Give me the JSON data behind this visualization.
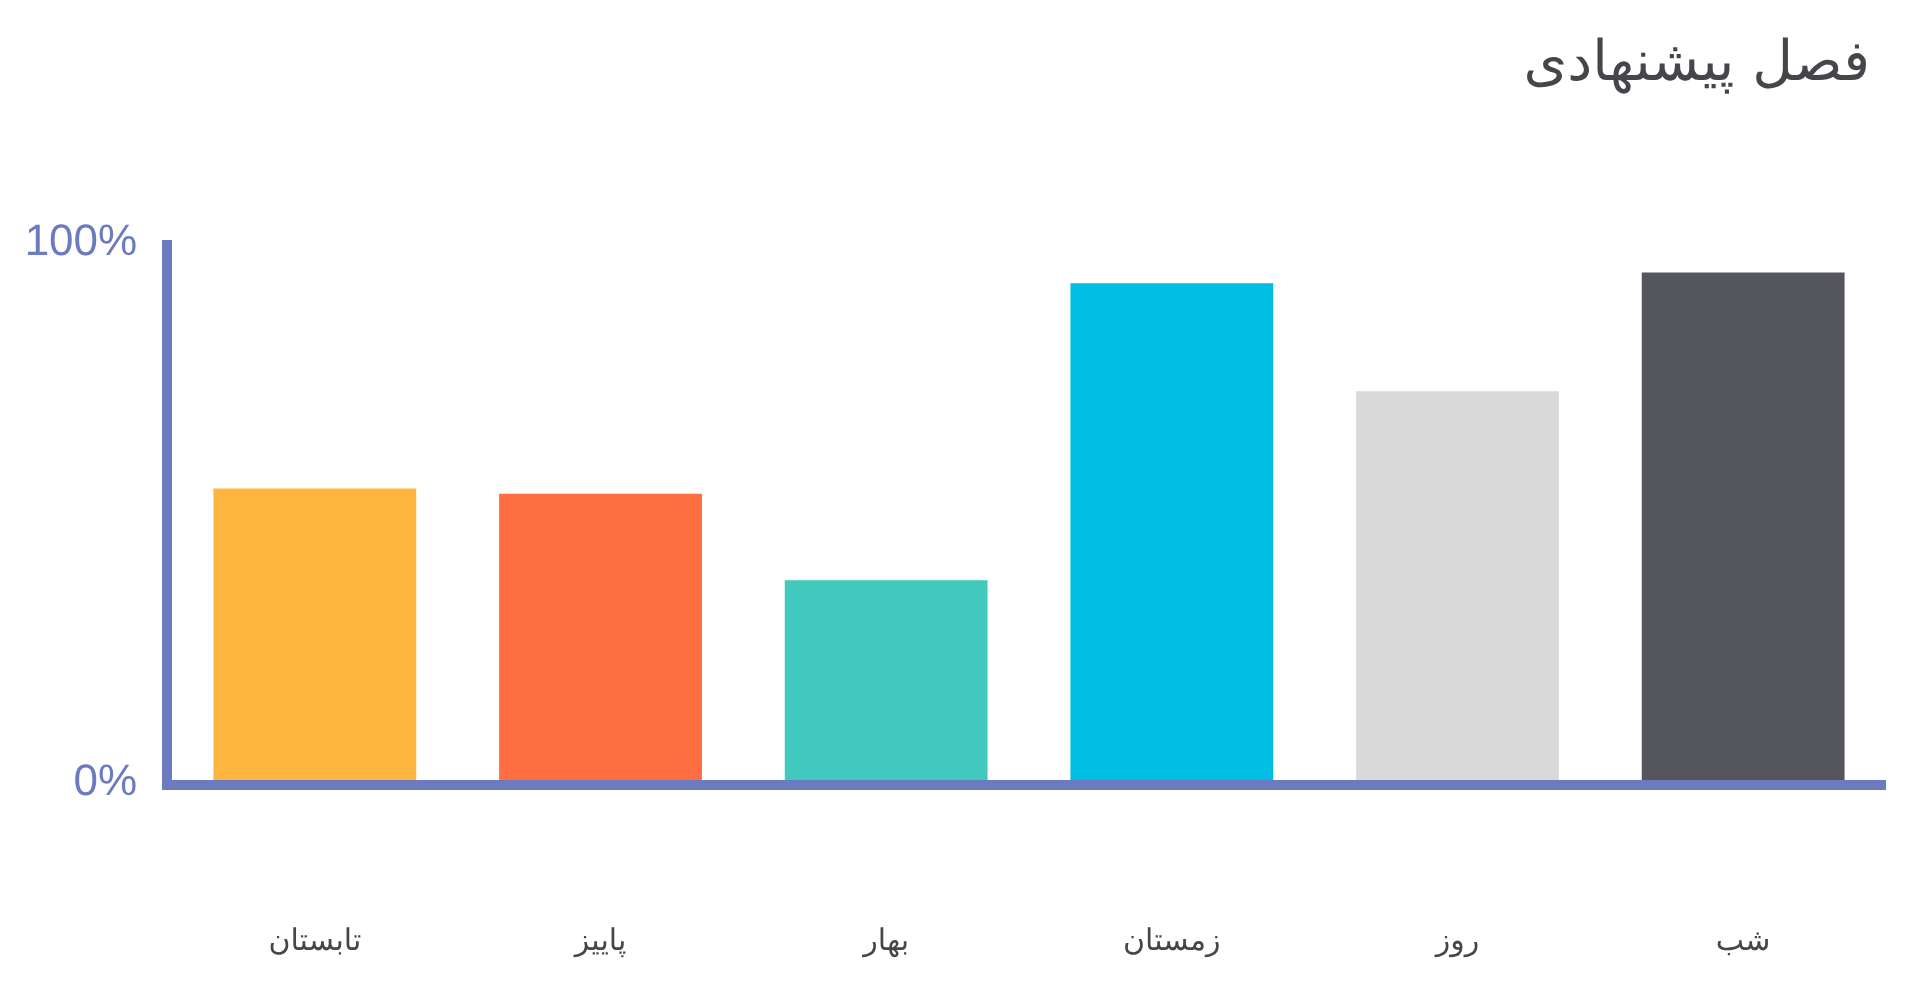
{
  "chart_data": {
    "type": "bar",
    "title": "فصل پیشنهادی",
    "categories": [
      "تابستان",
      "پاییز",
      "بهار",
      "زمستان",
      "روز",
      "شب"
    ],
    "values": [
      54,
      53,
      37,
      92,
      72,
      94
    ],
    "colors": [
      "#fdb53f",
      "#ff6e40",
      "#41c9bd",
      "#00bde3",
      "#d9d9d9",
      "#54565b"
    ],
    "ylim": [
      0,
      100
    ],
    "yticks": [
      {
        "value": 0,
        "label": "0%"
      },
      {
        "value": 100,
        "label": "100%"
      }
    ]
  }
}
